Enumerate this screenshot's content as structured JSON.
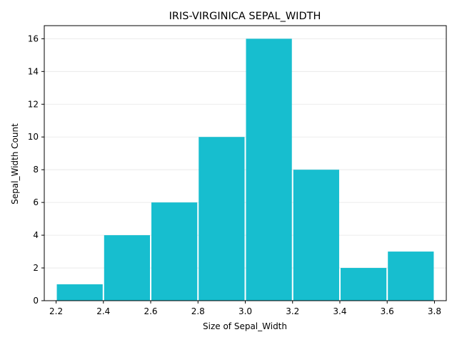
{
  "chart_data": {
    "type": "bar",
    "title": "IRIS-VIRGINICA SEPAL_WIDTH",
    "xlabel": "Size of Sepal_Width",
    "ylabel": "Sepal_Width Count",
    "bins": [
      {
        "start": 2.2,
        "end": 2.4,
        "count": 1
      },
      {
        "start": 2.4,
        "end": 2.6,
        "count": 4
      },
      {
        "start": 2.6,
        "end": 2.8,
        "count": 6
      },
      {
        "start": 2.8,
        "end": 3.0,
        "count": 10
      },
      {
        "start": 3.0,
        "end": 3.2,
        "count": 16
      },
      {
        "start": 3.2,
        "end": 3.4,
        "count": 8
      },
      {
        "start": 3.4,
        "end": 3.6,
        "count": 2
      },
      {
        "start": 3.6,
        "end": 3.8,
        "count": 3
      }
    ],
    "xlim": [
      2.15,
      3.85
    ],
    "ylim": [
      0,
      16.8
    ],
    "xticks": [
      "2.2",
      "2.4",
      "2.6",
      "2.8",
      "3.0",
      "3.2",
      "3.4",
      "3.6",
      "3.8"
    ],
    "yticks": [
      "0",
      "2",
      "4",
      "6",
      "8",
      "10",
      "12",
      "14",
      "16"
    ],
    "grid": "horizontal",
    "legend": "none",
    "bar_color": "#17becf"
  }
}
